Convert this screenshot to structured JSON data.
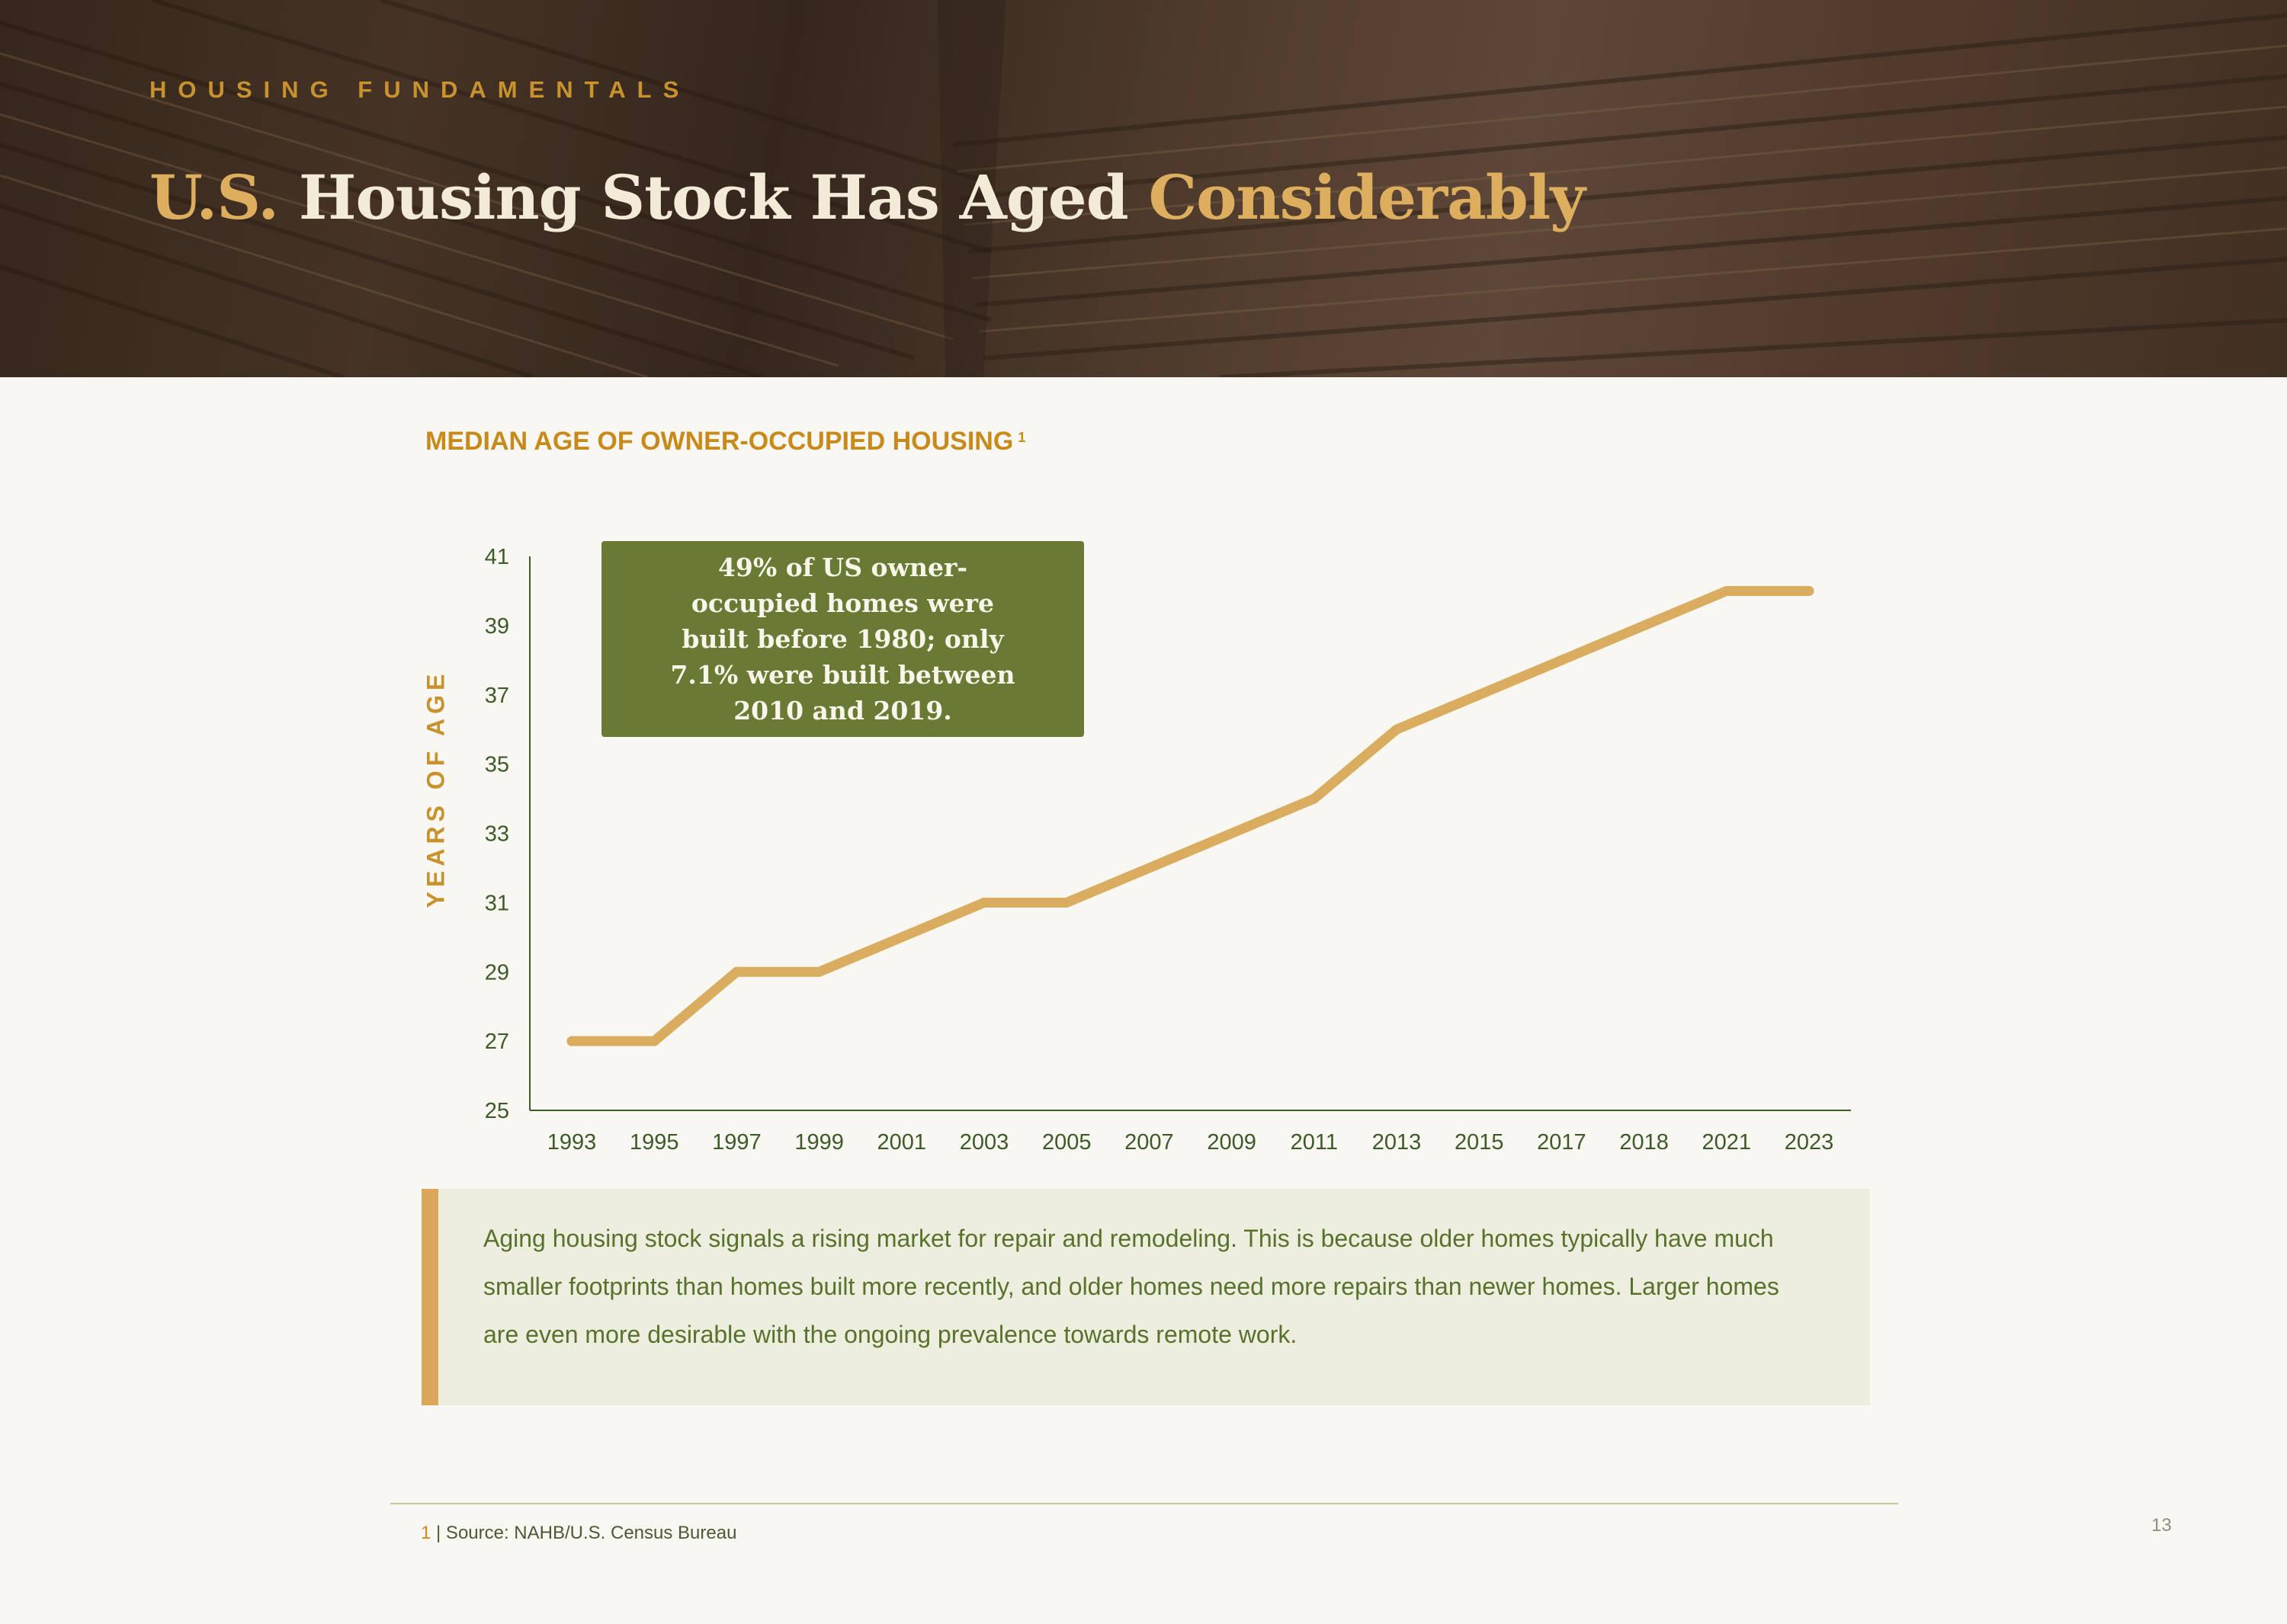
{
  "header": {
    "eyebrow": "HOUSING FUNDAMENTALS",
    "title_part1": "U.S.",
    "title_part2": " Housing Stock Has Aged ",
    "title_part3": "Considerably"
  },
  "chart_heading": "MEDIAN AGE OF OWNER-OCCUPIED HOUSING",
  "chart_heading_footnote": "1",
  "callout": "49% of US owner-occupied homes were built before 1980; only 7.1% were built between 2010 and 2019.",
  "note": "Aging housing stock signals a rising market for repair and remodeling. This is because older homes typically have much smaller footprints than homes built more recently, and older homes need more repairs than newer homes. Larger homes are even more desirable with the ongoing prevalence towards remote work.",
  "footer": {
    "footnote_number": "1",
    "source": " | Source: NAHB/U.S. Census Bureau",
    "page_number": "13"
  },
  "colors": {
    "line": "#d9ac5f",
    "callout_bg": "#687a34",
    "accent": "#c98a1c"
  },
  "chart_data": {
    "type": "line",
    "title": "MEDIAN AGE OF OWNER-OCCUPIED HOUSING",
    "ylabel": "YEARS OF AGE",
    "xlabel": "",
    "categories": [
      "1993",
      "1995",
      "1997",
      "1999",
      "2001",
      "2003",
      "2005",
      "2007",
      "2009",
      "2011",
      "2013",
      "2015",
      "2017",
      "2018",
      "2021",
      "2023"
    ],
    "series": [
      {
        "values": [
          27,
          27,
          29,
          29,
          30,
          31,
          31,
          32,
          33,
          34,
          36,
          37,
          38,
          39,
          40,
          40
        ]
      }
    ],
    "ylim": [
      25,
      41
    ],
    "yticks": [
      25,
      27,
      29,
      31,
      33,
      35,
      37,
      39,
      41
    ],
    "grid": false,
    "legend": "none"
  }
}
